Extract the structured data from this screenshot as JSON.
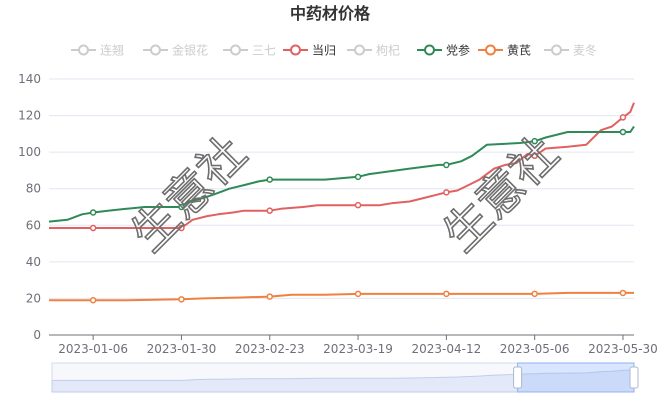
{
  "chart_data": {
    "type": "line",
    "title": "中药材价格",
    "xlabel": "",
    "ylabel": "",
    "ylim": [
      0,
      140
    ],
    "y_ticks": [
      0,
      20,
      40,
      60,
      80,
      100,
      120,
      140
    ],
    "x_start": "2022-12-25",
    "x_end": "2023-06-02",
    "x_tick_labels": [
      "2023-01-06",
      "2023-01-30",
      "2023-02-23",
      "2023-03-19",
      "2023-04-12",
      "2023-05-06",
      "2023-05-30"
    ],
    "grid": true,
    "legend_position": "top",
    "legend": [
      "连翘",
      "金银花",
      "三七",
      "当归",
      "枸杞",
      "党参",
      "黄芪",
      "麦冬"
    ],
    "inactive_color": "#cccccc",
    "series": [
      {
        "name": "连翘",
        "visible": false,
        "color": "#5470c6",
        "points": []
      },
      {
        "name": "金银花",
        "visible": false,
        "color": "#91cc75",
        "points": []
      },
      {
        "name": "三七",
        "visible": false,
        "color": "#fac858",
        "points": []
      },
      {
        "name": "当归",
        "visible": true,
        "color": "#e16060",
        "points": [
          [
            "2022-12-25",
            58.5
          ],
          [
            "2023-01-06",
            58.5
          ],
          [
            "2023-01-15",
            58.5
          ],
          [
            "2023-01-30",
            58.5
          ],
          [
            "2023-02-02",
            63
          ],
          [
            "2023-02-06",
            65
          ],
          [
            "2023-02-09",
            66
          ],
          [
            "2023-02-13",
            67
          ],
          [
            "2023-02-16",
            68
          ],
          [
            "2023-02-23",
            68
          ],
          [
            "2023-02-26",
            69
          ],
          [
            "2023-03-04",
            70
          ],
          [
            "2023-03-08",
            71
          ],
          [
            "2023-03-19",
            71
          ],
          [
            "2023-03-25",
            71
          ],
          [
            "2023-03-28",
            72
          ],
          [
            "2023-04-02",
            73
          ],
          [
            "2023-04-06",
            75
          ],
          [
            "2023-04-10",
            77
          ],
          [
            "2023-04-12",
            78
          ],
          [
            "2023-04-15",
            79
          ],
          [
            "2023-04-18",
            82
          ],
          [
            "2023-04-21",
            85
          ],
          [
            "2023-04-23",
            88
          ],
          [
            "2023-04-25",
            91
          ],
          [
            "2023-04-28",
            93
          ],
          [
            "2023-05-01",
            94
          ],
          [
            "2023-05-04",
            99
          ],
          [
            "2023-05-06",
            98
          ],
          [
            "2023-05-09",
            102
          ],
          [
            "2023-05-15",
            103
          ],
          [
            "2023-05-20",
            104
          ],
          [
            "2023-05-24",
            112
          ],
          [
            "2023-05-27",
            114
          ],
          [
            "2023-05-30",
            119
          ],
          [
            "2023-06-01",
            122
          ],
          [
            "2023-06-02",
            127
          ]
        ]
      },
      {
        "name": "枸杞",
        "visible": false,
        "color": "#3ba272",
        "points": []
      },
      {
        "name": "党参",
        "visible": true,
        "color": "#2e8b57",
        "points": [
          [
            "2022-12-25",
            62
          ],
          [
            "2022-12-30",
            63
          ],
          [
            "2023-01-03",
            66
          ],
          [
            "2023-01-06",
            67
          ],
          [
            "2023-01-10",
            68
          ],
          [
            "2023-01-15",
            69
          ],
          [
            "2023-01-20",
            70
          ],
          [
            "2023-01-30",
            70
          ],
          [
            "2023-02-01",
            73
          ],
          [
            "2023-02-05",
            75
          ],
          [
            "2023-02-08",
            77
          ],
          [
            "2023-02-12",
            80
          ],
          [
            "2023-02-16",
            82
          ],
          [
            "2023-02-20",
            84
          ],
          [
            "2023-02-23",
            85
          ],
          [
            "2023-03-10",
            85
          ],
          [
            "2023-03-19",
            86.5
          ],
          [
            "2023-03-22",
            88
          ],
          [
            "2023-04-02",
            91
          ],
          [
            "2023-04-10",
            93
          ],
          [
            "2023-04-12",
            93
          ],
          [
            "2023-04-16",
            95
          ],
          [
            "2023-04-19",
            98
          ],
          [
            "2023-04-23",
            104
          ],
          [
            "2023-05-02",
            105
          ],
          [
            "2023-05-06",
            106
          ],
          [
            "2023-05-09",
            108
          ],
          [
            "2023-05-15",
            111
          ],
          [
            "2023-05-20",
            111
          ],
          [
            "2023-05-30",
            111
          ],
          [
            "2023-06-01",
            111
          ],
          [
            "2023-06-02",
            114
          ]
        ]
      },
      {
        "name": "黄芪",
        "visible": true,
        "color": "#f08040",
        "points": [
          [
            "2022-12-25",
            19
          ],
          [
            "2023-01-06",
            19
          ],
          [
            "2023-01-15",
            19
          ],
          [
            "2023-01-30",
            19.5
          ],
          [
            "2023-02-05",
            20
          ],
          [
            "2023-02-15",
            20.5
          ],
          [
            "2023-02-23",
            21
          ],
          [
            "2023-03-01",
            22
          ],
          [
            "2023-03-10",
            22
          ],
          [
            "2023-03-19",
            22.5
          ],
          [
            "2023-04-12",
            22.5
          ],
          [
            "2023-05-06",
            22.5
          ],
          [
            "2023-05-15",
            23
          ],
          [
            "2023-05-30",
            23
          ],
          [
            "2023-06-02",
            23
          ]
        ]
      },
      {
        "name": "麦冬",
        "visible": false,
        "color": "#9a60b4",
        "points": []
      }
    ],
    "zoom_range": [
      0.8,
      1.0
    ]
  },
  "watermark": {
    "text": "生意社"
  }
}
